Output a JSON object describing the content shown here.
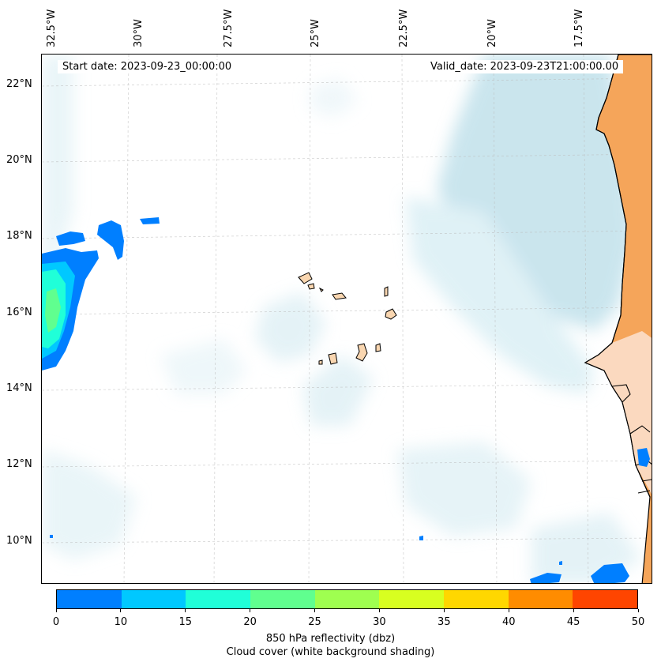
{
  "map": {
    "start_date_label": "Start date: 2023-09-23_00:00:00",
    "valid_date_label": "Valid_date: 2023-09-23T21:00:00.00",
    "longitude_labels": [
      "32.5°W",
      "30°W",
      "27.5°W",
      "25°W",
      "22.5°W",
      "20°W",
      "17.5°W"
    ],
    "latitude_labels": [
      "22°N",
      "20°N",
      "18°N",
      "16°N",
      "14°N",
      "12°N",
      "10°N"
    ],
    "colors": {
      "land_africa": "#f5a55a",
      "island_fill": "#f9d6b0",
      "cloud": "#add8e6",
      "coastline": "#000000"
    }
  },
  "colorbar": {
    "colors": [
      "#007fff",
      "#00c8ff",
      "#20ffd8",
      "#60ff8f",
      "#9fff50",
      "#d8ff20",
      "#ffd700",
      "#ff8c00",
      "#ff4500"
    ],
    "tick_labels": [
      "0",
      "10",
      "15",
      "20",
      "25",
      "30",
      "35",
      "40",
      "45",
      "50"
    ],
    "title_line1": "850 hPa reflectivity (dbz)",
    "title_line2": "Cloud cover (white background shading)"
  }
}
